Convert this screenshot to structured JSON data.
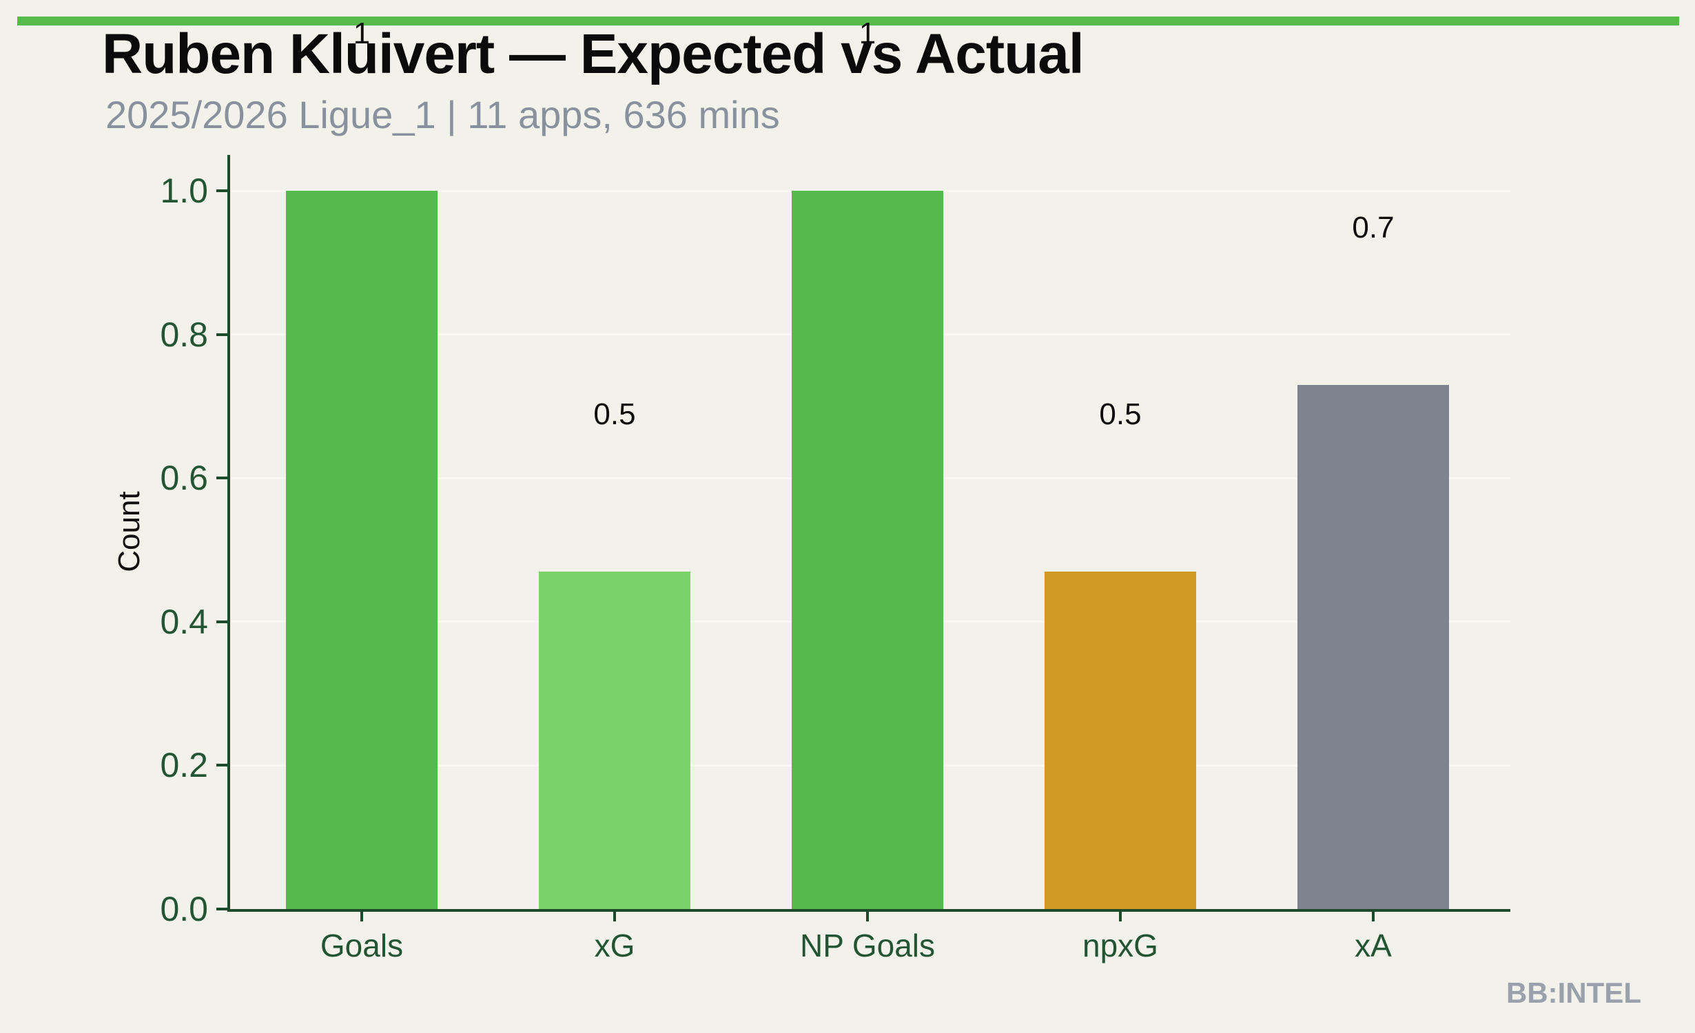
{
  "page": {
    "title": "Ruben Kluivert — Expected vs Actual",
    "subtitle": "2025/2026 Ligue_1 | 11 apps, 636 mins",
    "watermark": "BB:INTEL",
    "accent_color": "#58ba4b",
    "background_color": "#f2f2ea"
  },
  "chart_data": {
    "type": "bar",
    "title": "Ruben Kluivert — Expected vs Actual",
    "subtitle": "2025/2026 Ligue_1 | 11 apps, 636 mins",
    "categories": [
      "Goals",
      "xG",
      "NP Goals",
      "npxG",
      "xA"
    ],
    "values": [
      1.0,
      0.47,
      1.0,
      0.47,
      0.73
    ],
    "bar_labels": [
      "1",
      "0.5",
      "1",
      "0.5",
      "0.7"
    ],
    "bar_colors": [
      "#55b94d",
      "#7bd268",
      "#55b94d",
      "#d29a23",
      "#7d8490"
    ],
    "xlabel": "",
    "ylabel": "Count",
    "ylim": [
      0,
      1.05
    ],
    "yticks": [
      0.0,
      0.2,
      0.4,
      0.6,
      0.8,
      1.0
    ],
    "ytick_labels": [
      "0.0",
      "0.2",
      "0.4",
      "0.6",
      "0.8",
      "1.0"
    ],
    "grid": "horizontal-faint",
    "legend": "none",
    "axis_color": "#1e4a2c",
    "tick_label_color": "#235434"
  }
}
